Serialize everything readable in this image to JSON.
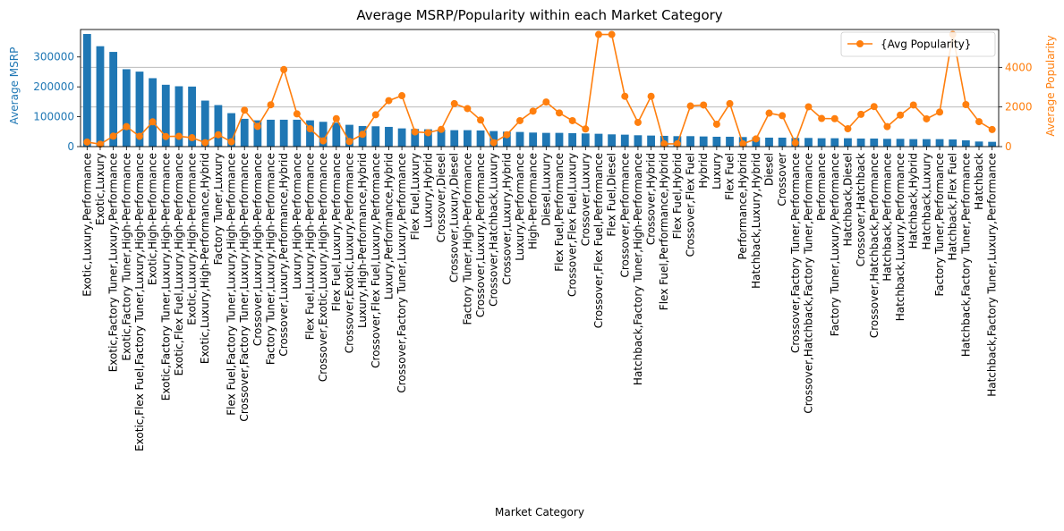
{
  "chart_data": {
    "type": "bar+line",
    "title": "Average MSRP/Popularity within each Market Category",
    "xlabel": "Market Category",
    "ylabel_left": "Average MSRP",
    "ylabel_right": "Average Popularity",
    "left_axis_color": "#1f77b4",
    "right_axis_color": "#ff7f0e",
    "bar_color": "#1f77b4",
    "line_color": "#ff7f0e",
    "ylim_left": [
      0,
      392000
    ],
    "ylim_right": [
      0,
      5910
    ],
    "yticks_left": [
      0,
      100000,
      200000,
      300000
    ],
    "yticks_right": [
      0,
      2000,
      4000
    ],
    "grid": "horizontal on right axis",
    "legend_position": "top-right",
    "categories": [
      "Exotic,Luxury,Performance",
      "Exotic,Luxury",
      "Exotic,Factory Tuner,Luxury,Performance",
      "Exotic,Factory Tuner,High-Performance",
      "Exotic,Flex Fuel,Factory Tuner,Luxury,High-Performance",
      "Exotic,High-Performance",
      "Exotic,Factory Tuner,Luxury,High-Performance",
      "Exotic,Flex Fuel,Luxury,High-Performance",
      "Exotic,Luxury,High-Performance",
      "Exotic,Luxury,High-Performance,Hybrid",
      "Factory Tuner,Luxury",
      "Flex Fuel,Factory Tuner,Luxury,High-Performance",
      "Crossover,Factory Tuner,Luxury,High-Performance",
      "Crossover,Luxury,High-Performance",
      "Factory Tuner,Luxury,High-Performance",
      "Crossover,Luxury,Performance,Hybrid",
      "Luxury,High-Performance",
      "Flex Fuel,Luxury,High-Performance",
      "Crossover,Exotic,Luxury,High-Performance",
      "Flex Fuel,Luxury,Performance",
      "Crossover,Exotic,Luxury,Performance",
      "Luxury,High-Performance,Hybrid",
      "Crossover,Flex Fuel,Luxury,Performance",
      "Luxury,Performance,Hybrid",
      "Crossover,Factory Tuner,Luxury,Performance",
      "Flex Fuel,Luxury",
      "Luxury,Hybrid",
      "Crossover,Diesel",
      "Crossover,Luxury,Diesel",
      "Factory Tuner,High-Performance",
      "Crossover,Luxury,Performance",
      "Crossover,Hatchback,Luxury",
      "Crossover,Luxury,Hybrid",
      "Luxury,Performance",
      "High-Performance",
      "Diesel,Luxury",
      "Flex Fuel,Performance",
      "Crossover,Flex Fuel,Luxury",
      "Crossover,Luxury",
      "Crossover,Flex Fuel,Performance",
      "Flex Fuel,Diesel",
      "Crossover,Performance",
      "Hatchback,Factory Tuner,High-Performance",
      "Crossover,Hybrid",
      "Flex Fuel,Performance,Hybrid",
      "Flex Fuel,Hybrid",
      "Crossover,Flex Fuel",
      "Hybrid",
      "Luxury",
      "Flex Fuel",
      "Performance,Hybrid",
      "Hatchback,Luxury,Hybrid",
      "Diesel",
      "Crossover",
      "Crossover,Factory Tuner,Performance",
      "Crossover,Hatchback,Factory Tuner,Performance",
      "Performance",
      "Factory Tuner,Luxury,Performance",
      "Hatchback,Diesel",
      "Crossover,Hatchback",
      "Crossover,Hatchback,Performance",
      "Hatchback,Performance",
      "Hatchback,Luxury,Performance",
      "Hatchback,Hybrid",
      "Hatchback,Luxury",
      "Factory Tuner,Performance",
      "Hatchback,Flex Fuel",
      "Hatchback,Factory Tuner,Performance",
      "Hatchback",
      "Hatchback,Factory Tuner,Luxury,Performance"
    ],
    "series": [
      {
        "name": "",
        "kind": "bar",
        "axis": "left",
        "values": [
          377000,
          336000,
          317000,
          259000,
          251000,
          229000,
          207000,
          202000,
          201000,
          154000,
          139000,
          112000,
          93000,
          88000,
          90000,
          90000,
          90000,
          88000,
          83000,
          80000,
          73000,
          69000,
          68000,
          66000,
          61000,
          59000,
          58000,
          57000,
          55000,
          55000,
          54000,
          52000,
          50000,
          49000,
          47000,
          46000,
          46000,
          45000,
          44000,
          43000,
          41000,
          40000,
          38000,
          37000,
          36000,
          35000,
          35000,
          34000,
          33000,
          33000,
          32000,
          31000,
          30000,
          30000,
          29000,
          29000,
          28000,
          28000,
          28000,
          27000,
          27000,
          26000,
          26000,
          25000,
          25000,
          25000,
          24000,
          21000,
          17000,
          16000
        ]
      },
      {
        "name": "{Avg Popularity}",
        "kind": "line",
        "axis": "right",
        "values": [
          230,
          120,
          530,
          1010,
          520,
          1250,
          510,
          520,
          450,
          200,
          600,
          240,
          1840,
          1020,
          2110,
          3890,
          1650,
          900,
          290,
          1410,
          260,
          620,
          1610,
          2320,
          2570,
          740,
          700,
          870,
          2170,
          1920,
          1340,
          200,
          600,
          1310,
          1790,
          2250,
          1700,
          1310,
          890,
          5660,
          5660,
          2540,
          1220,
          2540,
          140,
          140,
          2050,
          2100,
          1130,
          2170,
          140,
          390,
          1690,
          1560,
          190,
          2010,
          1420,
          1410,
          900,
          1630,
          2020,
          1010,
          1590,
          2100,
          1400,
          1740,
          5660,
          2120,
          1260,
          860
        ]
      }
    ]
  }
}
